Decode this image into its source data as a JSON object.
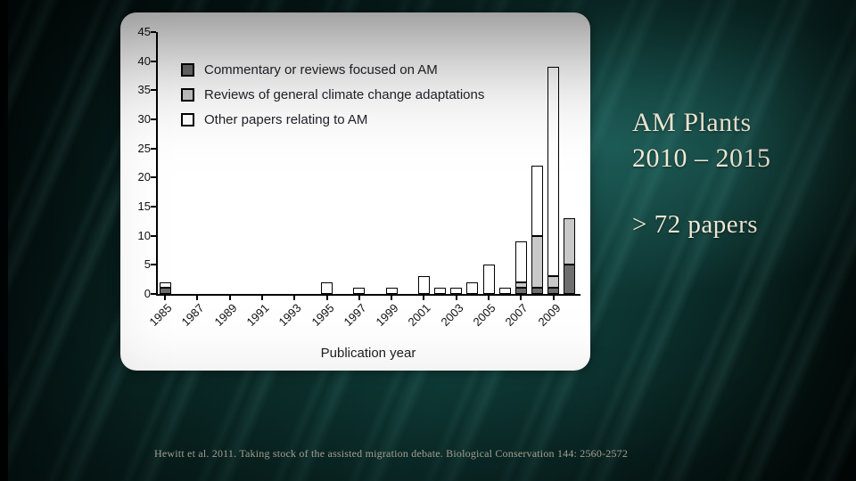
{
  "slide": {
    "title_lines": [
      "AM Plants",
      "2010 – 2015"
    ],
    "papers_note": "> 72 papers",
    "citation": "Hewitt et al. 2011. Taking stock of the assisted migration debate. Biological Conservation 144: 2560-2572"
  },
  "chart_data": {
    "type": "bar",
    "stacked": true,
    "title": "",
    "xlabel": "Publication year",
    "ylabel": "",
    "ylim": [
      0,
      45
    ],
    "ytick_step": 5,
    "grid": false,
    "legend_position": "upper-left",
    "categories": [
      1985,
      1986,
      1987,
      1988,
      1989,
      1990,
      1991,
      1992,
      1993,
      1994,
      1995,
      1996,
      1997,
      1998,
      1999,
      2000,
      2001,
      2002,
      2003,
      2004,
      2005,
      2006,
      2007,
      2008,
      2009,
      2010
    ],
    "xtick_labels": [
      "1985",
      "1987",
      "1989",
      "1991",
      "1993",
      "1995",
      "1997",
      "1999",
      "2001",
      "2003",
      "2005",
      "2007",
      "2009"
    ],
    "series": [
      {
        "name": "Commentary or reviews focused on AM",
        "color": "#6e6e6e",
        "values": [
          1,
          0,
          0,
          0,
          0,
          0,
          0,
          0,
          0,
          0,
          0,
          0,
          0,
          0,
          0,
          0,
          0,
          0,
          0,
          0,
          0,
          0,
          1,
          1,
          1,
          5
        ]
      },
      {
        "name": "Reviews of general climate change adaptations",
        "color": "#c8c8c8",
        "values": [
          0,
          0,
          0,
          0,
          0,
          0,
          0,
          0,
          0,
          0,
          0,
          0,
          0,
          0,
          0,
          0,
          0,
          0,
          0,
          0,
          0,
          0,
          1,
          9,
          2,
          8
        ]
      },
      {
        "name": "Other papers relating to AM",
        "color": "#ffffff",
        "values": [
          1,
          0,
          0,
          0,
          0,
          0,
          0,
          0,
          0,
          0,
          2,
          0,
          1,
          0,
          1,
          0,
          3,
          1,
          1,
          2,
          5,
          1,
          7,
          12,
          36,
          0
        ]
      }
    ]
  }
}
